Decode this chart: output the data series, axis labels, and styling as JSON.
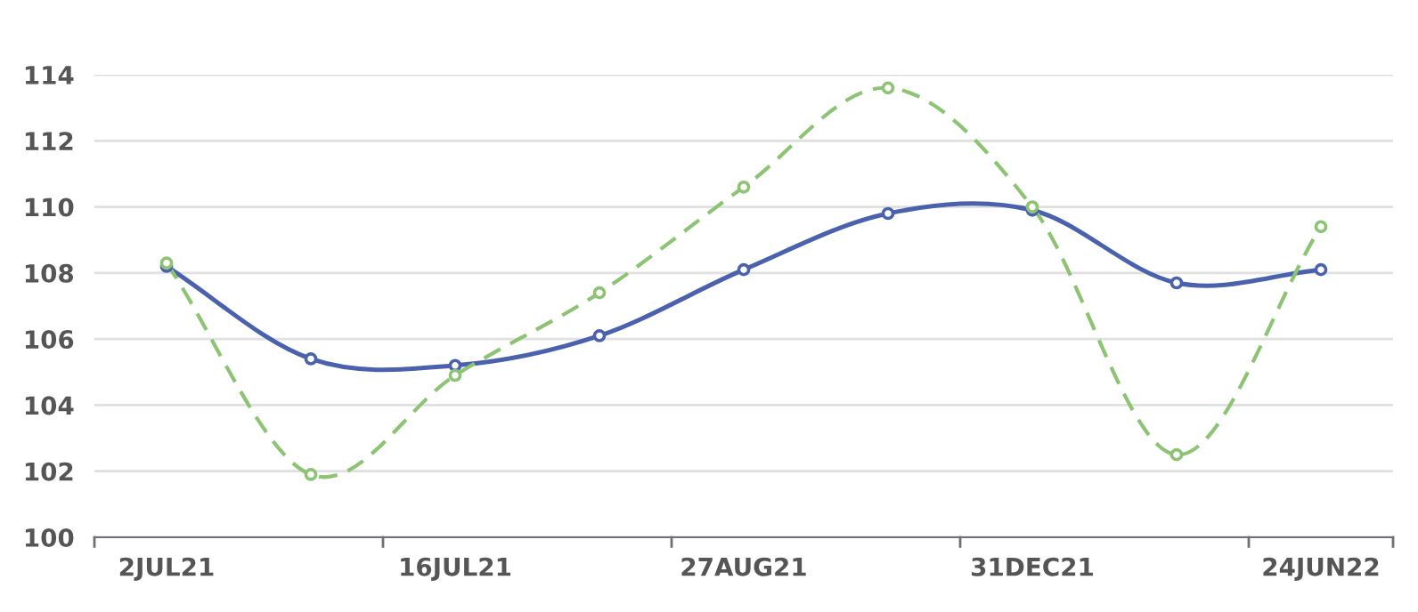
{
  "chart_data": {
    "type": "line",
    "categories": [
      "2JUL21",
      null,
      "16JUL21",
      null,
      "27AUG21",
      null,
      "31DEC21",
      null,
      "24JUN22"
    ],
    "series": [
      {
        "color": "#4a62ad",
        "line_style": "solid",
        "values": [
          108.2,
          105.4,
          105.2,
          106.1,
          108.1,
          109.8,
          109.9,
          107.7,
          108.1
        ]
      },
      {
        "color": "#8cc474",
        "line_style": "dashed",
        "values": [
          108.3,
          101.9,
          104.9,
          107.4,
          110.6,
          113.6,
          110.0,
          102.5,
          109.4
        ]
      }
    ],
    "ylim": [
      100,
      114
    ],
    "yticks": [
      100,
      102,
      104,
      106,
      108,
      110,
      112,
      114
    ],
    "grid": "y",
    "marker": "circle",
    "legend": false
  }
}
